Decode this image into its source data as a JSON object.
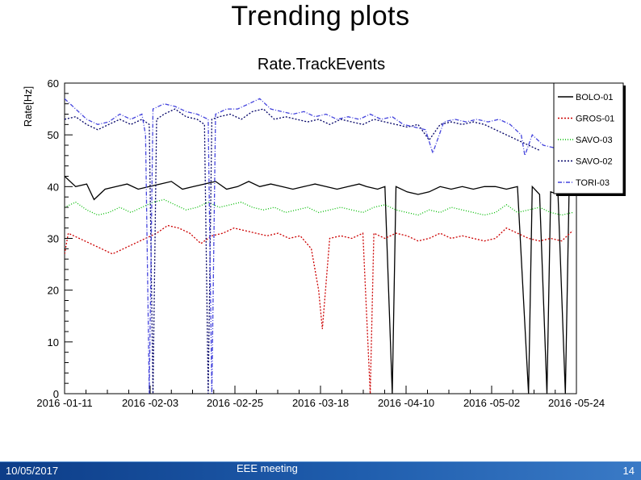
{
  "slide": {
    "title": "Trending plots"
  },
  "footer": {
    "date": "10/05/2017",
    "event": "EEE meeting",
    "page": "14"
  },
  "chart_data": {
    "type": "line",
    "title": "Rate.TrackEvents",
    "xlabel": "",
    "ylabel": "Rate[Hz]",
    "x_ticks": [
      "2016 -01-11",
      "2016 -02-03",
      "2016 -02-25",
      "2016 -03-18",
      "2016 -04-10",
      "2016 -05-02",
      "2016 -05-24"
    ],
    "x_start": "2016-01-11",
    "x_end": "2016-05-29",
    "ylim": [
      0,
      60
    ],
    "y_ticks": [
      0,
      10,
      20,
      30,
      40,
      50,
      60
    ],
    "grid": false,
    "legend_position": "top-right",
    "series": [
      {
        "name": "BOLO-01",
        "color": "#000000",
        "dash": "",
        "points": [
          [
            "2016-01-11",
            42
          ],
          [
            "2016-01-14",
            40
          ],
          [
            "2016-01-17",
            40.5
          ],
          [
            "2016-01-19",
            37.5
          ],
          [
            "2016-01-22",
            39.5
          ],
          [
            "2016-01-25",
            40
          ],
          [
            "2016-01-28",
            40.5
          ],
          [
            "2016-01-31",
            39.5
          ],
          [
            "2016-02-03",
            40
          ],
          [
            "2016-02-06",
            40.5
          ],
          [
            "2016-02-09",
            41
          ],
          [
            "2016-02-12",
            39.5
          ],
          [
            "2016-02-15",
            40
          ],
          [
            "2016-02-18",
            40.5
          ],
          [
            "2016-02-21",
            41
          ],
          [
            "2016-02-24",
            39.5
          ],
          [
            "2016-02-27",
            40
          ],
          [
            "2016-03-01",
            41
          ],
          [
            "2016-03-04",
            40
          ],
          [
            "2016-03-07",
            40.5
          ],
          [
            "2016-03-10",
            40
          ],
          [
            "2016-03-13",
            39.5
          ],
          [
            "2016-03-16",
            40
          ],
          [
            "2016-03-19",
            40.5
          ],
          [
            "2016-03-22",
            40
          ],
          [
            "2016-03-25",
            39.5
          ],
          [
            "2016-03-28",
            40
          ],
          [
            "2016-03-31",
            40.5
          ],
          [
            "2016-04-02",
            40
          ],
          [
            "2016-04-05",
            39.5
          ],
          [
            "2016-04-07",
            40
          ],
          [
            "2016-04-09",
            0
          ],
          [
            "2016-04-10",
            40
          ],
          [
            "2016-04-13",
            39
          ],
          [
            "2016-04-16",
            38.5
          ],
          [
            "2016-04-19",
            39
          ],
          [
            "2016-04-22",
            40
          ],
          [
            "2016-04-25",
            39.5
          ],
          [
            "2016-04-28",
            40
          ],
          [
            "2016-05-01",
            39.5
          ],
          [
            "2016-05-04",
            40
          ],
          [
            "2016-05-07",
            40
          ],
          [
            "2016-05-10",
            39.5
          ],
          [
            "2016-05-13",
            40
          ],
          [
            "2016-05-16",
            0
          ],
          [
            "2016-05-17",
            40
          ],
          [
            "2016-05-19",
            38.5
          ],
          [
            "2016-05-21",
            0
          ],
          [
            "2016-05-22",
            39
          ],
          [
            "2016-05-24",
            38.5
          ],
          [
            "2016-05-26",
            0
          ],
          [
            "2016-05-27",
            39
          ],
          [
            "2016-05-29",
            40
          ]
        ]
      },
      {
        "name": "GROS-01",
        "color": "#cc0000",
        "dash": "2,2",
        "points": [
          [
            "2016-01-11",
            27
          ],
          [
            "2016-01-12",
            31
          ],
          [
            "2016-01-15",
            30
          ],
          [
            "2016-01-18",
            29
          ],
          [
            "2016-01-21",
            28
          ],
          [
            "2016-01-24",
            27
          ],
          [
            "2016-01-27",
            28
          ],
          [
            "2016-01-30",
            29
          ],
          [
            "2016-02-02",
            30
          ],
          [
            "2016-02-05",
            31
          ],
          [
            "2016-02-08",
            32.5
          ],
          [
            "2016-02-11",
            32
          ],
          [
            "2016-02-14",
            31
          ],
          [
            "2016-02-17",
            29
          ],
          [
            "2016-02-20",
            30.5
          ],
          [
            "2016-02-23",
            31
          ],
          [
            "2016-02-26",
            32
          ],
          [
            "2016-02-29",
            31.5
          ],
          [
            "2016-03-03",
            31
          ],
          [
            "2016-03-06",
            30.5
          ],
          [
            "2016-03-09",
            31
          ],
          [
            "2016-03-12",
            30
          ],
          [
            "2016-03-15",
            30.5
          ],
          [
            "2016-03-18",
            28
          ],
          [
            "2016-03-20",
            20
          ],
          [
            "2016-03-21",
            12.5
          ],
          [
            "2016-03-23",
            30
          ],
          [
            "2016-03-26",
            30.5
          ],
          [
            "2016-03-29",
            30
          ],
          [
            "2016-04-01",
            31
          ],
          [
            "2016-04-03",
            0
          ],
          [
            "2016-04-04",
            31
          ],
          [
            "2016-04-07",
            30
          ],
          [
            "2016-04-10",
            31
          ],
          [
            "2016-04-13",
            30.5
          ],
          [
            "2016-04-16",
            29.5
          ],
          [
            "2016-04-19",
            30
          ],
          [
            "2016-04-22",
            31
          ],
          [
            "2016-04-25",
            30
          ],
          [
            "2016-04-28",
            30.5
          ],
          [
            "2016-05-01",
            30
          ],
          [
            "2016-05-04",
            29.5
          ],
          [
            "2016-05-07",
            30
          ],
          [
            "2016-05-10",
            32
          ],
          [
            "2016-05-13",
            31
          ],
          [
            "2016-05-16",
            30
          ],
          [
            "2016-05-19",
            29.5
          ],
          [
            "2016-05-22",
            30
          ],
          [
            "2016-05-25",
            29.5
          ],
          [
            "2016-05-28",
            31.5
          ]
        ]
      },
      {
        "name": "SAVO-03",
        "color": "#00bb00",
        "dash": "1,2",
        "points": [
          [
            "2016-01-11",
            36
          ],
          [
            "2016-01-14",
            37
          ],
          [
            "2016-01-17",
            35.5
          ],
          [
            "2016-01-20",
            34.5
          ],
          [
            "2016-01-23",
            35
          ],
          [
            "2016-01-26",
            36
          ],
          [
            "2016-01-29",
            35
          ],
          [
            "2016-02-01",
            36
          ],
          [
            "2016-02-04",
            37
          ],
          [
            "2016-02-07",
            37.5
          ],
          [
            "2016-02-10",
            36.5
          ],
          [
            "2016-02-13",
            35.5
          ],
          [
            "2016-02-16",
            36
          ],
          [
            "2016-02-19",
            37
          ],
          [
            "2016-02-22",
            36
          ],
          [
            "2016-02-25",
            36.5
          ],
          [
            "2016-02-28",
            37
          ],
          [
            "2016-03-02",
            36
          ],
          [
            "2016-03-05",
            35.5
          ],
          [
            "2016-03-08",
            36
          ],
          [
            "2016-03-11",
            35
          ],
          [
            "2016-03-14",
            35.5
          ],
          [
            "2016-03-17",
            36
          ],
          [
            "2016-03-20",
            35
          ],
          [
            "2016-03-23",
            35.5
          ],
          [
            "2016-03-26",
            36
          ],
          [
            "2016-03-29",
            35.5
          ],
          [
            "2016-04-01",
            35
          ],
          [
            "2016-04-04",
            36
          ],
          [
            "2016-04-07",
            36.5
          ],
          [
            "2016-04-10",
            35.5
          ],
          [
            "2016-04-13",
            35
          ],
          [
            "2016-04-16",
            34.5
          ],
          [
            "2016-04-19",
            35.5
          ],
          [
            "2016-04-22",
            35
          ],
          [
            "2016-04-25",
            36
          ],
          [
            "2016-04-28",
            35.5
          ],
          [
            "2016-05-01",
            35
          ],
          [
            "2016-05-04",
            34.5
          ],
          [
            "2016-05-07",
            35
          ],
          [
            "2016-05-10",
            36.5
          ],
          [
            "2016-05-13",
            35
          ],
          [
            "2016-05-16",
            35.5
          ],
          [
            "2016-05-19",
            36
          ],
          [
            "2016-05-22",
            35
          ],
          [
            "2016-05-25",
            34.5
          ],
          [
            "2016-05-28",
            35
          ]
        ]
      },
      {
        "name": "SAVO-02",
        "color": "#000066",
        "dash": "2,2",
        "points": [
          [
            "2016-01-11",
            53
          ],
          [
            "2016-01-14",
            53.5
          ],
          [
            "2016-01-17",
            52
          ],
          [
            "2016-01-20",
            51
          ],
          [
            "2016-01-23",
            52
          ],
          [
            "2016-01-26",
            53
          ],
          [
            "2016-01-29",
            52
          ],
          [
            "2016-02-01",
            53
          ],
          [
            "2016-02-03",
            52
          ],
          [
            "2016-02-04",
            0
          ],
          [
            "2016-02-05",
            53
          ],
          [
            "2016-02-07",
            54
          ],
          [
            "2016-02-10",
            55
          ],
          [
            "2016-02-13",
            53.5
          ],
          [
            "2016-02-16",
            53
          ],
          [
            "2016-02-18",
            52
          ],
          [
            "2016-02-19",
            0
          ],
          [
            "2016-02-20",
            53
          ],
          [
            "2016-02-22",
            53.5
          ],
          [
            "2016-02-25",
            54
          ],
          [
            "2016-02-28",
            53
          ],
          [
            "2016-03-02",
            54.5
          ],
          [
            "2016-03-05",
            55
          ],
          [
            "2016-03-08",
            53
          ],
          [
            "2016-03-11",
            53.5
          ],
          [
            "2016-03-14",
            53
          ],
          [
            "2016-03-17",
            52.5
          ],
          [
            "2016-03-20",
            53
          ],
          [
            "2016-03-23",
            52
          ],
          [
            "2016-03-26",
            53
          ],
          [
            "2016-03-29",
            52.5
          ],
          [
            "2016-04-01",
            52
          ],
          [
            "2016-04-04",
            53
          ],
          [
            "2016-04-07",
            52.5
          ],
          [
            "2016-04-10",
            52
          ],
          [
            "2016-04-13",
            51.5
          ],
          [
            "2016-04-16",
            52
          ],
          [
            "2016-04-19",
            49
          ],
          [
            "2016-04-22",
            52
          ],
          [
            "2016-04-25",
            52.5
          ],
          [
            "2016-04-28",
            52
          ],
          [
            "2016-05-01",
            52.5
          ],
          [
            "2016-05-04",
            52
          ],
          [
            "2016-05-07",
            51
          ],
          [
            "2016-05-10",
            50
          ],
          [
            "2016-05-13",
            49
          ],
          [
            "2016-05-16",
            48
          ],
          [
            "2016-05-19",
            47
          ]
        ]
      },
      {
        "name": "TORI-03",
        "color": "#4444dd",
        "dash": "5,2,1,2",
        "points": [
          [
            "2016-01-11",
            57
          ],
          [
            "2016-01-14",
            55
          ],
          [
            "2016-01-17",
            53
          ],
          [
            "2016-01-20",
            52
          ],
          [
            "2016-01-23",
            52.5
          ],
          [
            "2016-01-26",
            54
          ],
          [
            "2016-01-29",
            53
          ],
          [
            "2016-02-01",
            54
          ],
          [
            "2016-02-02",
            50
          ],
          [
            "2016-02-03",
            0
          ],
          [
            "2016-02-04",
            55
          ],
          [
            "2016-02-07",
            56
          ],
          [
            "2016-02-10",
            55.5
          ],
          [
            "2016-02-13",
            54.5
          ],
          [
            "2016-02-16",
            54
          ],
          [
            "2016-02-19",
            53
          ],
          [
            "2016-02-20",
            0
          ],
          [
            "2016-02-21",
            54
          ],
          [
            "2016-02-24",
            55
          ],
          [
            "2016-02-27",
            55
          ],
          [
            "2016-03-01",
            56
          ],
          [
            "2016-03-04",
            57
          ],
          [
            "2016-03-07",
            55
          ],
          [
            "2016-03-10",
            54.5
          ],
          [
            "2016-03-13",
            54
          ],
          [
            "2016-03-16",
            54.5
          ],
          [
            "2016-03-19",
            53.5
          ],
          [
            "2016-03-22",
            54
          ],
          [
            "2016-03-25",
            53
          ],
          [
            "2016-03-28",
            53.5
          ],
          [
            "2016-03-31",
            53
          ],
          [
            "2016-04-03",
            54
          ],
          [
            "2016-04-06",
            53
          ],
          [
            "2016-04-09",
            53.5
          ],
          [
            "2016-04-12",
            52
          ],
          [
            "2016-04-15",
            51.5
          ],
          [
            "2016-04-18",
            51
          ],
          [
            "2016-04-20",
            46.5
          ],
          [
            "2016-04-23",
            52.5
          ],
          [
            "2016-04-26",
            53
          ],
          [
            "2016-04-29",
            52.5
          ],
          [
            "2016-05-02",
            53
          ],
          [
            "2016-05-05",
            52.5
          ],
          [
            "2016-05-08",
            53
          ],
          [
            "2016-05-11",
            52
          ],
          [
            "2016-05-14",
            50
          ],
          [
            "2016-05-15",
            46
          ],
          [
            "2016-05-17",
            50
          ],
          [
            "2016-05-20",
            48
          ],
          [
            "2016-05-23",
            47.5
          ],
          [
            "2016-05-26",
            49
          ]
        ]
      }
    ]
  }
}
